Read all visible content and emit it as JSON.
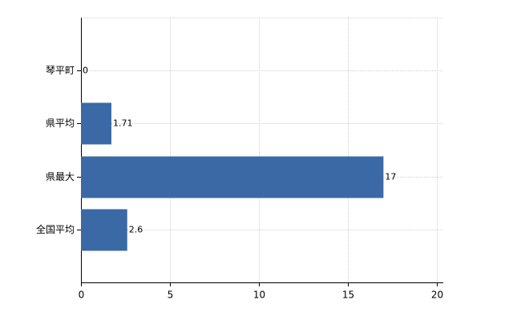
{
  "chart_data": {
    "type": "hbar",
    "categories": [
      "琴平町",
      "県平均",
      "県最大",
      "全国平均"
    ],
    "values": [
      0,
      1.71,
      17,
      2.6
    ],
    "color": "#3a69a6",
    "xlim": [
      0,
      20
    ],
    "xticks": [
      0,
      5,
      10,
      15,
      20
    ],
    "grid": true
  }
}
